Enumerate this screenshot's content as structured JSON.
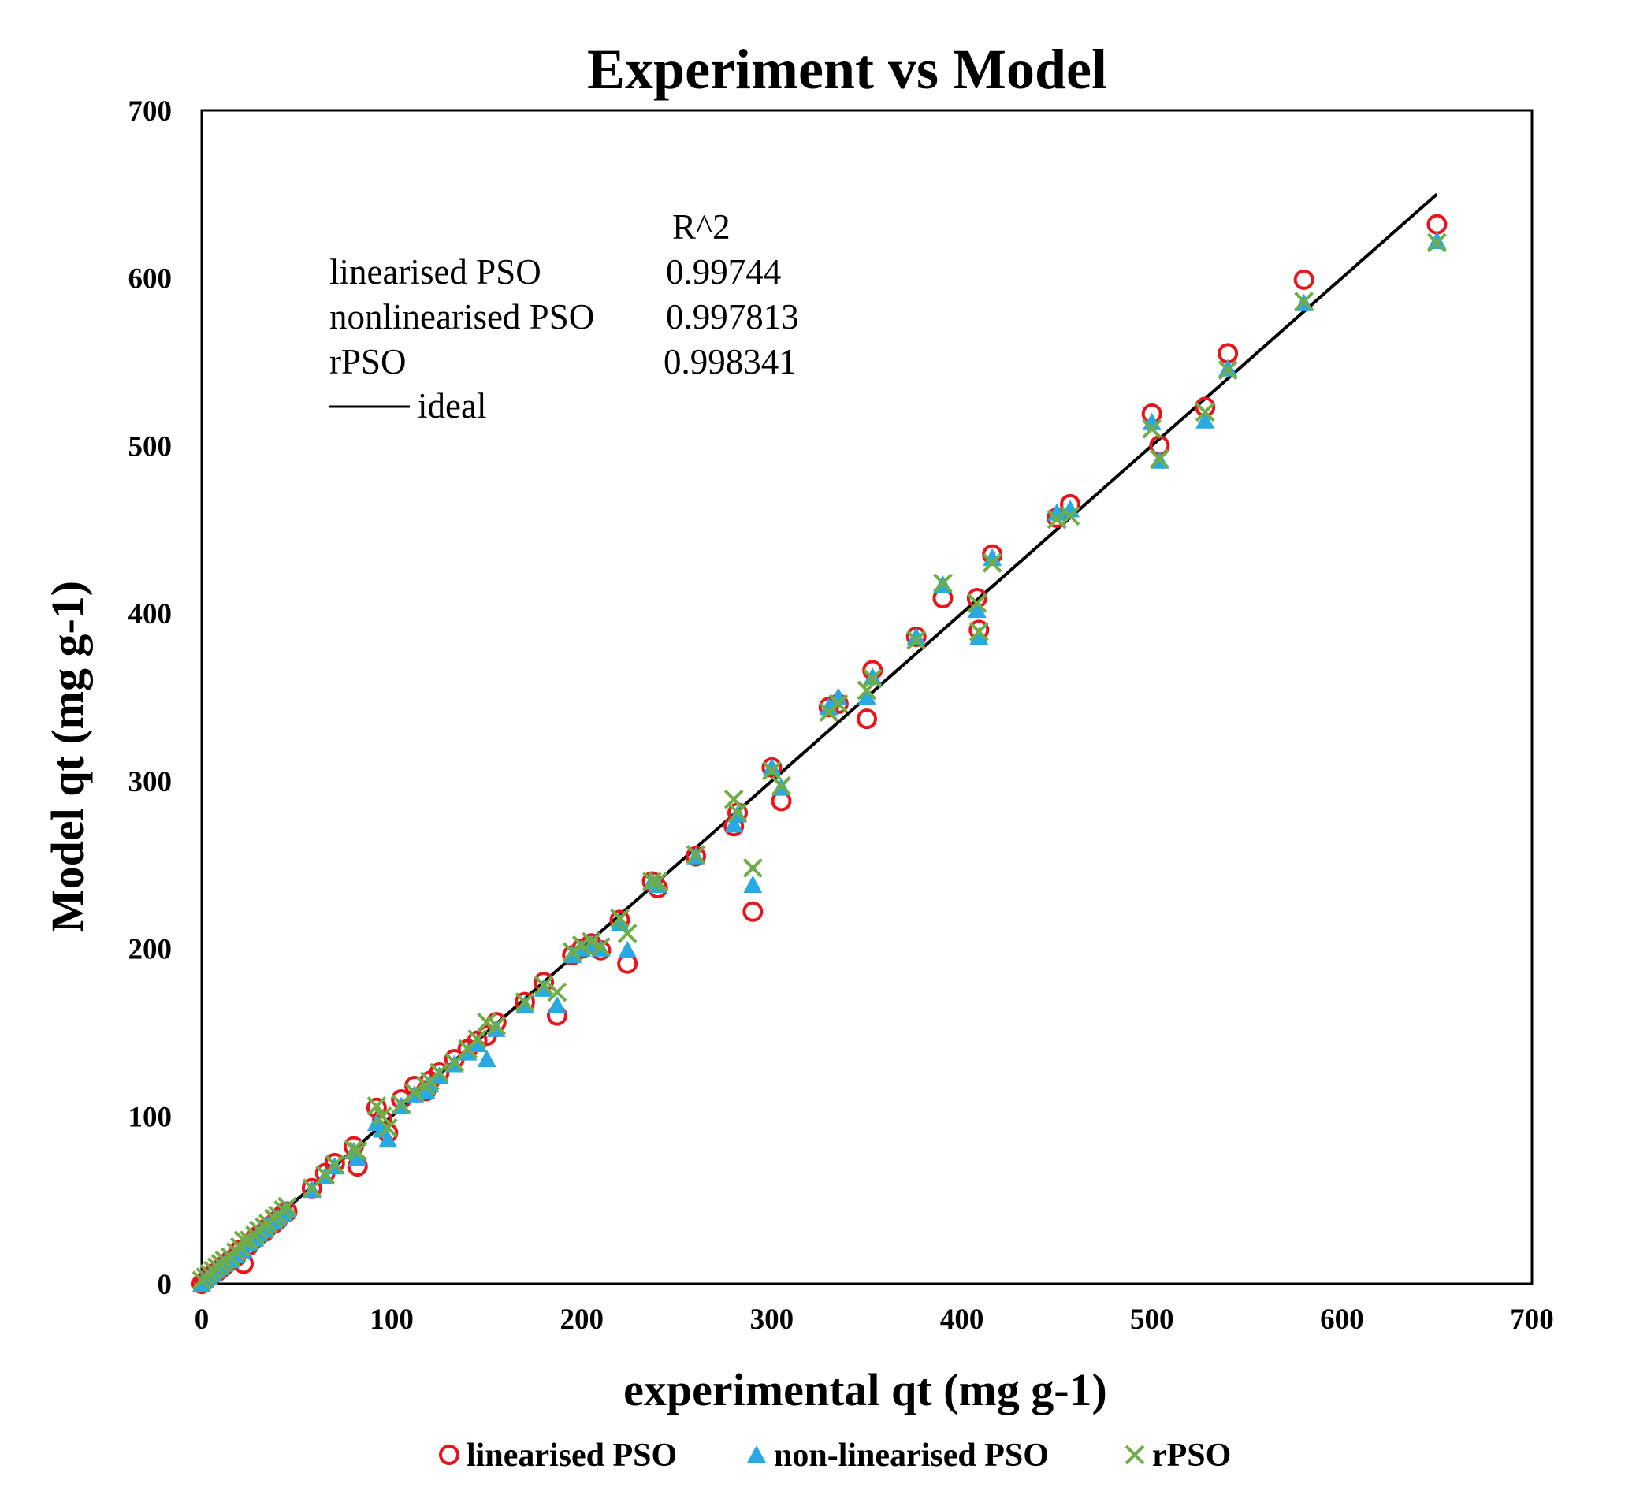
{
  "chart_data": {
    "type": "scatter",
    "title": "Experiment vs Model",
    "xlabel": "experimental qt (mg g-1)",
    "ylabel": "Model qt (mg g-1)",
    "xlim": [
      0,
      700
    ],
    "ylim": [
      0,
      700
    ],
    "xticks": [
      0,
      100,
      200,
      300,
      400,
      500,
      600,
      700
    ],
    "yticks": [
      0,
      100,
      200,
      300,
      400,
      500,
      600,
      700
    ],
    "grid": false,
    "legend_position": "bottom",
    "annotation": {
      "header": "R^2",
      "rows": [
        {
          "label": "linearised PSO",
          "value": "0.99744"
        },
        {
          "label": "nonlinearised PSO",
          "value": "0.997813"
        },
        {
          "label": "rPSO",
          "value": "0.998341"
        }
      ],
      "ideal_label": "ideal"
    },
    "ideal_line": {
      "x": [
        0,
        650
      ],
      "y": [
        0,
        650
      ]
    },
    "series": [
      {
        "name": "linearised PSO",
        "marker": "circle",
        "color": "#e8161b",
        "x": [
          0,
          2,
          4,
          6,
          8,
          10,
          12,
          15,
          18,
          20,
          22,
          25,
          28,
          30,
          33,
          35,
          38,
          40,
          43,
          45,
          58,
          65,
          70,
          80,
          82,
          92,
          95,
          98,
          105,
          112,
          118,
          120,
          125,
          133,
          140,
          145,
          150,
          155,
          170,
          180,
          187,
          195,
          200,
          205,
          210,
          220,
          224,
          237,
          240,
          260,
          280,
          282,
          290,
          300,
          305,
          330,
          335,
          350,
          353,
          376,
          390,
          408,
          409,
          416,
          450,
          457,
          500,
          504,
          528,
          540,
          580,
          650
        ],
        "y": [
          0,
          2,
          4,
          6,
          7,
          9,
          11,
          14,
          16,
          20,
          12,
          23,
          27,
          29,
          31,
          34,
          36,
          38,
          42,
          43,
          57,
          66,
          72,
          82,
          70,
          105,
          98,
          90,
          110,
          118,
          115,
          121,
          126,
          134,
          140,
          145,
          148,
          156,
          168,
          180,
          160,
          196,
          200,
          203,
          199,
          217,
          191,
          240,
          236,
          255,
          273,
          281,
          222,
          308,
          288,
          344,
          346,
          337,
          366,
          386,
          409,
          409,
          390,
          435,
          457,
          465,
          519,
          500,
          523,
          555,
          599,
          632
        ]
      },
      {
        "name": "non-linearised PSO",
        "marker": "triangle",
        "color": "#29a9e1",
        "x": [
          0,
          2,
          4,
          6,
          8,
          10,
          12,
          15,
          18,
          20,
          22,
          25,
          28,
          30,
          33,
          35,
          38,
          40,
          43,
          45,
          58,
          65,
          70,
          80,
          82,
          92,
          95,
          98,
          105,
          112,
          118,
          120,
          125,
          133,
          140,
          145,
          150,
          155,
          170,
          180,
          187,
          195,
          200,
          205,
          210,
          220,
          224,
          237,
          240,
          260,
          280,
          282,
          290,
          300,
          305,
          330,
          335,
          350,
          353,
          376,
          390,
          408,
          409,
          416,
          450,
          457,
          500,
          504,
          528,
          540,
          580,
          650
        ],
        "y": [
          0,
          2,
          4,
          6,
          8,
          10,
          12,
          14,
          17,
          20,
          20,
          24,
          27,
          30,
          32,
          35,
          37,
          39,
          42,
          44,
          56,
          64,
          70,
          79,
          75,
          96,
          92,
          86,
          106,
          113,
          115,
          119,
          124,
          131,
          138,
          143,
          134,
          152,
          166,
          176,
          166,
          196,
          200,
          202,
          200,
          215,
          199,
          240,
          238,
          255,
          274,
          280,
          238,
          308,
          296,
          344,
          350,
          350,
          362,
          386,
          417,
          402,
          386,
          433,
          460,
          462,
          514,
          491,
          515,
          546,
          585,
          622
        ]
      },
      {
        "name": "rPSO",
        "marker": "x",
        "color": "#70ad47",
        "x": [
          0,
          2,
          4,
          6,
          8,
          10,
          12,
          15,
          18,
          20,
          22,
          25,
          28,
          30,
          33,
          35,
          38,
          40,
          43,
          45,
          58,
          65,
          70,
          80,
          82,
          92,
          95,
          98,
          105,
          112,
          118,
          120,
          125,
          133,
          140,
          145,
          150,
          155,
          170,
          180,
          187,
          195,
          200,
          205,
          210,
          220,
          224,
          237,
          240,
          260,
          280,
          282,
          290,
          300,
          305,
          330,
          335,
          350,
          353,
          376,
          390,
          408,
          409,
          416,
          450,
          457,
          500,
          504,
          528,
          540,
          580,
          650
        ],
        "y": [
          2,
          4,
          6,
          8,
          10,
          12,
          14,
          16,
          19,
          22,
          26,
          26,
          29,
          32,
          34,
          36,
          39,
          41,
          44,
          46,
          57,
          65,
          71,
          80,
          79,
          106,
          100,
          93,
          107,
          114,
          118,
          121,
          126,
          132,
          140,
          146,
          156,
          154,
          168,
          178,
          174,
          198,
          202,
          204,
          201,
          218,
          209,
          240,
          240,
          256,
          289,
          281,
          248,
          306,
          297,
          341,
          346,
          354,
          361,
          384,
          418,
          406,
          389,
          430,
          456,
          458,
          510,
          492,
          520,
          545,
          586,
          621
        ]
      }
    ]
  }
}
